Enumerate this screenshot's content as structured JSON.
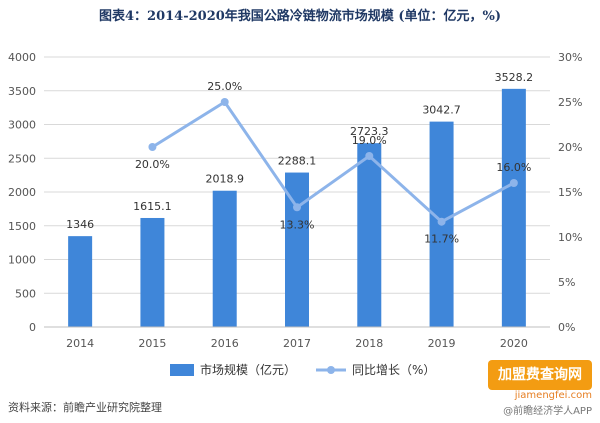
{
  "chart_data": {
    "type": "bar",
    "title": "图表4：2014-2020年我国公路冷链物流市场规模 (单位：亿元，%)",
    "categories": [
      "2014",
      "2015",
      "2016",
      "2017",
      "2018",
      "2019",
      "2020"
    ],
    "ylim": [
      0,
      4000
    ],
    "yticks": [
      "0",
      "500",
      "1000",
      "1500",
      "2000",
      "2500",
      "3000",
      "3500",
      "4000"
    ],
    "y2lim": [
      0,
      30
    ],
    "y2ticks": [
      "0%",
      "5%",
      "10%",
      "15%",
      "20%",
      "25%",
      "30%"
    ],
    "grid": true,
    "legend_position": "bottom",
    "series": [
      {
        "name": "市场规模（亿元）",
        "type": "bar",
        "axis": "left",
        "color": "#3f86d9",
        "values": [
          1346,
          1615.1,
          2018.9,
          2288.1,
          2723.3,
          3042.7,
          3528.2
        ],
        "labels": [
          "1346",
          "1615.1",
          "2018.9",
          "2288.1",
          "2723.3",
          "3042.7",
          "3528.2"
        ]
      },
      {
        "name": "同比增长（%）",
        "type": "line",
        "axis": "right",
        "color": "#8db4ea",
        "values": [
          null,
          20.0,
          25.0,
          13.3,
          19.0,
          11.7,
          16.0
        ],
        "labels": [
          "",
          "20.0%",
          "25.0%",
          "13.3%",
          "19.0%",
          "11.7%",
          "16.0%"
        ]
      }
    ]
  },
  "source": "资料来源：前瞻产业研究院整理",
  "watermark": {
    "brand": "加盟费查询网",
    "url": "jiamengfei.com",
    "app": "@前瞻经济学人APP"
  }
}
